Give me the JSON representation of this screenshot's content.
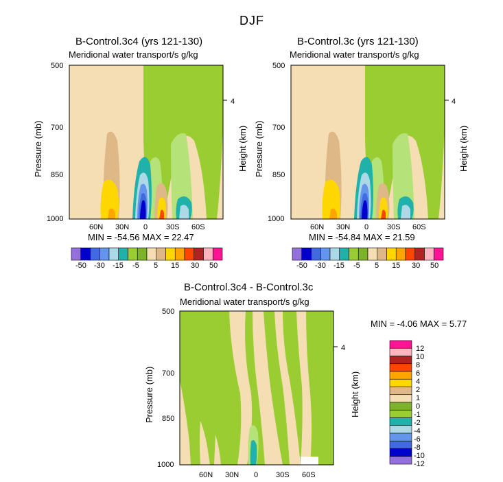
{
  "season": "DJF",
  "chart_data": [
    {
      "type": "contour",
      "title": "B-Control.3c4 (yrs 121-130)",
      "subtitle": "Meridional water transport/s g/kg",
      "ylabel": "Pressure (mb)",
      "y2label": "Height (km)",
      "yticks": [
        "500",
        "700",
        "850",
        "1000"
      ],
      "y2ticks": [
        "4"
      ],
      "xticks": [
        "60N",
        "30N",
        "0",
        "30S",
        "60S"
      ],
      "stats": "MIN = -54.56   MAX = 22.47",
      "levels": [
        -50,
        -40,
        -30,
        -20,
        -15,
        -10,
        -5,
        0,
        5,
        10,
        15,
        20,
        30,
        40,
        50
      ],
      "colorbar_labels": [
        "-50",
        "-30",
        "-15",
        "-5",
        "5",
        "15",
        "30",
        "50"
      ]
    },
    {
      "type": "contour",
      "title": "B-Control.3c (yrs 121-130)",
      "subtitle": "Meridional water transport/s g/kg",
      "ylabel": "Pressure (mb)",
      "y2label": "Height (km)",
      "yticks": [
        "500",
        "700",
        "850",
        "1000"
      ],
      "y2ticks": [
        "4"
      ],
      "xticks": [
        "60N",
        "30N",
        "0",
        "30S",
        "60S"
      ],
      "stats": "MIN = -54.84   MAX = 21.59",
      "levels": [
        -50,
        -40,
        -30,
        -20,
        -15,
        -10,
        -5,
        0,
        5,
        10,
        15,
        20,
        30,
        40,
        50
      ],
      "colorbar_labels": [
        "-50",
        "-30",
        "-15",
        "-5",
        "5",
        "15",
        "30",
        "50"
      ]
    },
    {
      "type": "contour",
      "title": "B-Control.3c4 - B-Control.3c",
      "subtitle": "Meridional water transport/s g/kg",
      "ylabel": "Pressure (mb)",
      "y2label": "Height (km)",
      "yticks": [
        "500",
        "700",
        "850",
        "1000"
      ],
      "y2ticks": [
        "4"
      ],
      "xticks": [
        "60N",
        "30N",
        "0",
        "30S",
        "60S"
      ],
      "stats": "MIN = -4.06   MAX = 5.77",
      "levels": [
        -12,
        -10,
        -8,
        -6,
        -4,
        -2,
        -1,
        0,
        1,
        2,
        4,
        6,
        8,
        10,
        12
      ],
      "colorbar_labels": [
        "12",
        "10",
        "8",
        "6",
        "4",
        "2",
        "1",
        "0",
        "-1",
        "-2",
        "-4",
        "-6",
        "-8",
        "-10",
        "-12"
      ]
    }
  ],
  "palette": [
    "#9370db",
    "#0000cd",
    "#4169e1",
    "#6495ed",
    "#add8e6",
    "#20b2aa",
    "#9acd32",
    "#7db32a",
    "#f5deb3",
    "#deb887",
    "#ffd700",
    "#ffa500",
    "#ff4500",
    "#b22222",
    "#ffb6c1",
    "#ff1493"
  ]
}
